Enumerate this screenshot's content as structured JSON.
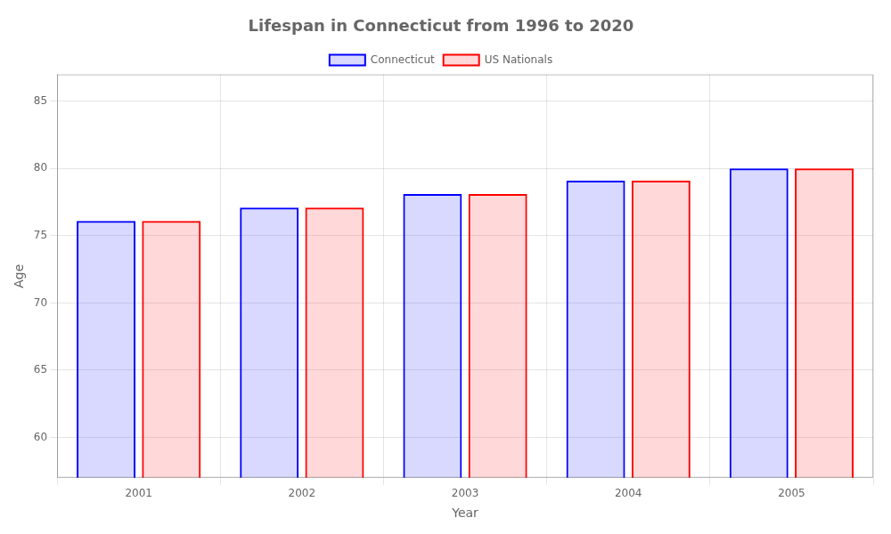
{
  "chart_data": {
    "type": "bar",
    "title": "Lifespan in Connecticut from 1996 to 2020",
    "x_label": "Year",
    "y_label": "Age",
    "categories": [
      "2001",
      "2002",
      "2003",
      "2004",
      "2005"
    ],
    "series": [
      {
        "name": "Connecticut",
        "color": "#0000ff",
        "values": [
          76.1,
          77.1,
          78.1,
          79.1,
          80.0
        ]
      },
      {
        "name": "US Nationals",
        "color": "#ff0000",
        "values": [
          76.1,
          77.1,
          78.1,
          79.1,
          80.0
        ]
      }
    ],
    "ylim": [
      57,
      87
    ],
    "yticks": [
      60,
      65,
      70,
      75,
      80,
      85
    ],
    "grid": true,
    "legend": "top"
  }
}
